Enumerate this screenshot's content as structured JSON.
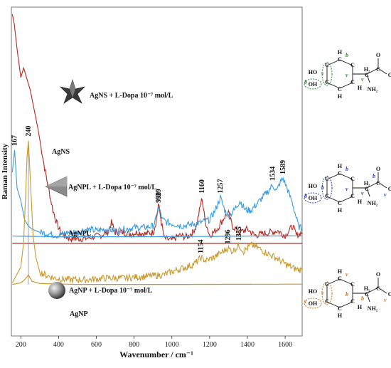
{
  "chart_data": {
    "type": "line",
    "xlabel": "Wavenumber / cm⁻¹",
    "ylabel": "Raman Intensity",
    "xlim": [
      150,
      1690
    ],
    "x_ticks": [
      "200",
      "400",
      "600",
      "800",
      "1000",
      "1200",
      "1400",
      "1600"
    ],
    "x_tick_values": [
      200,
      400,
      600,
      800,
      1000,
      1200,
      1400,
      1600
    ],
    "y_ticks": "none",
    "grid": false,
    "legend": "none",
    "series": [
      {
        "name": "AgNS + L-Dopa 10⁻⁷ mol/L",
        "color": "#b5261e",
        "x": [
          155,
          165,
          180,
          200,
          215,
          230,
          250,
          270,
          290,
          310,
          330,
          350,
          370,
          390,
          410,
          430,
          460,
          500,
          540,
          580,
          620,
          660,
          680,
          700,
          740,
          780,
          820,
          860,
          900,
          915,
          929,
          945,
          960,
          1000,
          1040,
          1080,
          1110,
          1130,
          1150,
          1160,
          1175,
          1200,
          1240,
          1280,
          1300,
          1320,
          1360,
          1400,
          1440,
          1480,
          1520,
          1560,
          1600,
          1640,
          1660,
          1690
        ],
        "y": [
          100,
          97,
          89,
          80,
          83,
          80,
          76,
          70,
          64,
          57,
          50,
          44,
          38,
          34,
          31,
          30,
          29,
          29,
          29,
          29.5,
          30,
          31,
          34,
          31,
          31,
          30.5,
          31,
          30.5,
          31,
          34,
          40,
          34,
          29,
          28.5,
          30,
          29.5,
          31,
          33,
          39,
          42,
          35,
          30,
          32,
          36,
          37,
          33,
          31,
          32,
          30,
          30.5,
          31,
          31.5,
          30,
          33,
          30,
          31
        ]
      },
      {
        "name": "AgNS",
        "color": "#b5261e",
        "x": [
          155,
          400,
          800,
          1200,
          1690
        ],
        "y": [
          27.5,
          27.5,
          27.5,
          27.5,
          27.5
        ]
      },
      {
        "name": "AgNPL + L-Dopa 10⁻⁷ mol/L",
        "color": "#3a9be0",
        "x": [
          155,
          167,
          180,
          200,
          220,
          240,
          260,
          300,
          350,
          400,
          450,
          500,
          550,
          600,
          650,
          700,
          750,
          800,
          850,
          900,
          915,
          930,
          950,
          980,
          1020,
          1060,
          1100,
          1150,
          1200,
          1230,
          1257,
          1280,
          1300,
          1330,
          1360,
          1390,
          1420,
          1450,
          1480,
          1510,
          1534,
          1555,
          1575,
          1589,
          1610,
          1640,
          1670,
          1690
        ],
        "y": [
          50,
          57,
          45,
          41,
          35,
          33,
          32,
          31,
          30.5,
          30,
          31,
          31,
          32,
          31.5,
          32,
          31.5,
          32,
          32.5,
          32.5,
          33,
          35,
          39,
          35,
          34,
          33.5,
          33,
          33.5,
          34,
          35,
          38,
          42,
          38,
          36,
          38,
          41,
          38,
          38,
          40,
          42,
          44,
          46,
          44,
          47,
          48,
          45,
          40,
          33,
          32
        ]
      },
      {
        "name": "AgNPL",
        "color": "#3a9be0",
        "x": [
          155,
          400,
          800,
          1200,
          1690
        ],
        "y": [
          29.8,
          29.6,
          29.6,
          29.7,
          29.9
        ]
      },
      {
        "name": "AgNP + L-Dopa 10⁻⁷ mol/L",
        "color": "#c89a2e",
        "x": [
          155,
          200,
          215,
          225,
          233,
          240,
          250,
          265,
          280,
          300,
          330,
          380,
          450,
          550,
          650,
          750,
          850,
          950,
          1000,
          1050,
          1100,
          1130,
          1154,
          1180,
          1220,
          1260,
          1296,
          1320,
          1340,
          1355,
          1380,
          1420,
          1460,
          1500,
          1550,
          1600,
          1650,
          1690
        ],
        "y": [
          15,
          20,
          28,
          42,
          55,
          60,
          48,
          30,
          23,
          18.5,
          17.5,
          16.5,
          16,
          16,
          16.5,
          16.5,
          17,
          17.5,
          18.5,
          19.5,
          20.5,
          21.5,
          23,
          22,
          23,
          24.5,
          26,
          25,
          26,
          27,
          25,
          27,
          26,
          24.5,
          23,
          21,
          19.5,
          19
        ]
      },
      {
        "name": "AgNP",
        "color": "#c89a2e",
        "x": [
          155,
          200,
          220,
          240,
          260,
          300,
          500,
          1000,
          1690
        ],
        "y": [
          14.5,
          15,
          16,
          17.5,
          15.5,
          14.8,
          14.5,
          14.5,
          14.6
        ]
      }
    ],
    "annotations": [
      {
        "text": "929",
        "x": 929,
        "y": 40
      },
      {
        "text": "1160",
        "x": 1160,
        "y": 42
      },
      {
        "text": "167",
        "x": 167,
        "y": 57
      },
      {
        "text": "240",
        "x": 240,
        "y": 60
      },
      {
        "text": "930",
        "x": 930,
        "y": 39
      },
      {
        "text": "1257",
        "x": 1257,
        "y": 42
      },
      {
        "text": "1534",
        "x": 1534,
        "y": 46
      },
      {
        "text": "1589",
        "x": 1589,
        "y": 48
      },
      {
        "text": "1154",
        "x": 1154,
        "y": 23
      },
      {
        "text": "1296",
        "x": 1296,
        "y": 26
      },
      {
        "text": "1355",
        "x": 1355,
        "y": 27
      }
    ],
    "vertical_marker": 240,
    "spectrum_labels": [
      {
        "key": "ns_dopa",
        "text": "AgNS + L-Dopa 10⁻⁷ mol/L",
        "shape": "star"
      },
      {
        "key": "ns",
        "text": "AgNS"
      },
      {
        "key": "npl_dopa",
        "text": "AgNPL + L-Dopa 10⁻⁷ mol/L",
        "shape": "triangle"
      },
      {
        "key": "npl",
        "text": "AgNPL"
      },
      {
        "key": "np_dopa",
        "text": "AgNP + L-Dopa 10⁻⁷ mol/L",
        "shape": "sphere"
      },
      {
        "key": "np",
        "text": "AgNP"
      }
    ]
  },
  "molecules": [
    {
      "key": "mol_ns",
      "highlight_color": "#2e8b2e",
      "mode_letters": [
        "b",
        "b",
        "v",
        "v",
        "v"
      ]
    },
    {
      "key": "mol_npl",
      "highlight_color": "#2a3fae",
      "mode_letters": [
        "b",
        "b",
        "b",
        "v",
        "v",
        "v",
        "b"
      ]
    },
    {
      "key": "mol_np",
      "highlight_color": "#c8741c",
      "mode_letters": [
        "v",
        "v",
        "v",
        "b",
        "b",
        "v"
      ]
    }
  ],
  "molecule_atoms": {
    "ho": "HO",
    "h": "H",
    "c": "C",
    "h2": "H₂",
    "oh": "OH",
    "o": "O",
    "nh2": "NH₂"
  }
}
